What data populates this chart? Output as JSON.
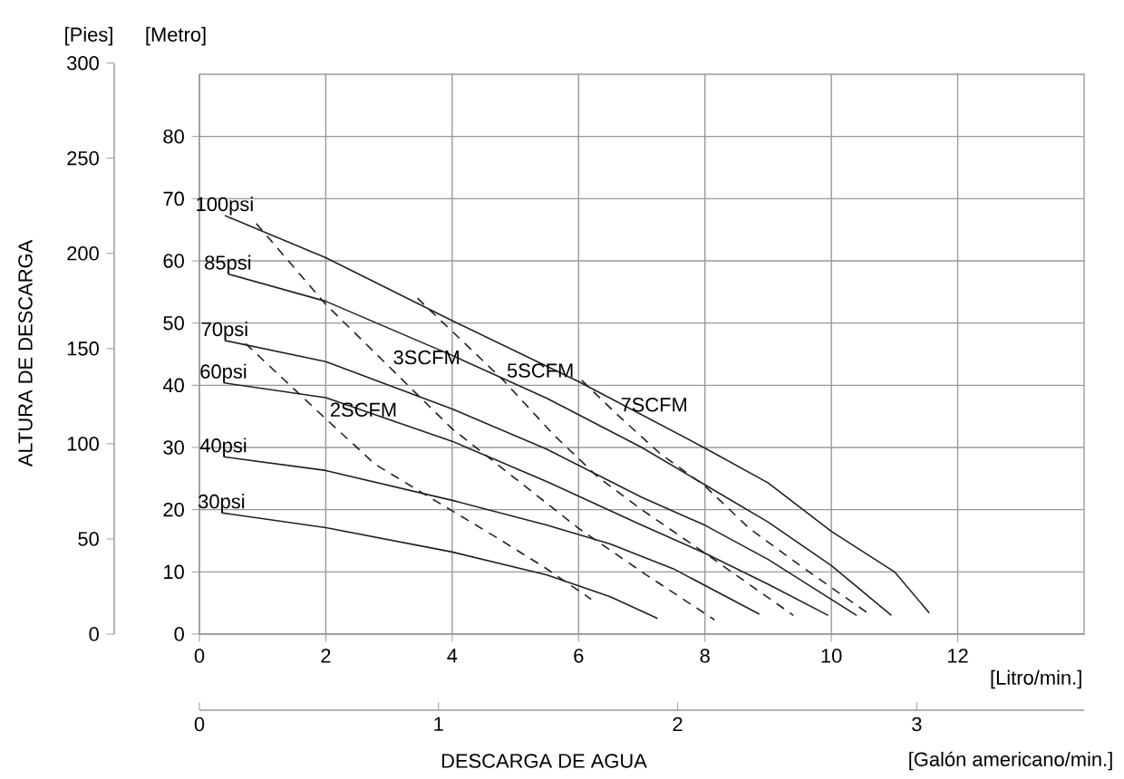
{
  "chart_data": {
    "type": "line",
    "xlabel": "[Litro/min.]",
    "x2label": "[Galón americano/min.]",
    "ylabel": "[Metro]",
    "y2label": "[Pies]",
    "annotations": [
      "DESCARGA DE AGUA",
      "ALTURA DE DESCARGA"
    ],
    "xlim": [
      0,
      14
    ],
    "xticks": [
      0,
      2,
      4,
      6,
      8,
      10,
      12
    ],
    "x2lim": [
      0,
      3.7
    ],
    "x2ticks": [
      0,
      1,
      2,
      3
    ],
    "ylim": [
      0,
      90
    ],
    "yticks": [
      0,
      10,
      20,
      30,
      40,
      50,
      60,
      70,
      80
    ],
    "y2lim": [
      0,
      300
    ],
    "y2ticks": [
      0,
      50,
      100,
      150,
      200,
      250,
      300
    ],
    "grid": true,
    "series": [
      {
        "name": "100psi",
        "color": "#231f20",
        "line_style": "solid",
        "x": [
          0.4,
          2,
          4,
          6,
          8,
          9,
          10,
          11,
          11.55
        ],
        "values": [
          67.3,
          60.5,
          50.4,
          40.6,
          29.9,
          24.3,
          16.5,
          10,
          3.4
        ]
      },
      {
        "name": "85psi",
        "color": "#231f20",
        "line_style": "solid",
        "x": [
          0.45,
          2,
          4,
          5.5,
          7,
          8,
          9,
          10,
          10.95
        ],
        "values": [
          57.9,
          53.5,
          44.8,
          37.9,
          30,
          24,
          18,
          11,
          3
        ]
      },
      {
        "name": "70psi",
        "color": "#231f20",
        "line_style": "solid",
        "x": [
          0.4,
          2,
          4,
          5.5,
          7,
          8,
          9,
          10.4
        ],
        "values": [
          47.2,
          43.8,
          36.2,
          29.7,
          22,
          17.5,
          12,
          3
        ]
      },
      {
        "name": "60psi",
        "color": "#231f20",
        "line_style": "solid",
        "x": [
          0.38,
          2,
          4,
          5.5,
          7,
          8,
          9,
          9.95
        ],
        "values": [
          40.4,
          38,
          31,
          24.5,
          17.5,
          13,
          8,
          3
        ]
      },
      {
        "name": "40psi",
        "color": "#231f20",
        "line_style": "solid",
        "x": [
          0.38,
          2,
          4,
          5.5,
          6.5,
          7.5,
          8.86
        ],
        "values": [
          28.5,
          26.3,
          21.5,
          17.5,
          14.5,
          10.5,
          3.2
        ]
      },
      {
        "name": "30psi",
        "color": "#231f20",
        "line_style": "solid",
        "x": [
          0.35,
          2,
          4,
          5.5,
          6.5,
          7.25
        ],
        "values": [
          19.5,
          17.1,
          13.2,
          9.5,
          6,
          2.5
        ]
      },
      {
        "name": "2SCFM",
        "color": "#231f20",
        "line_style": "dashed",
        "x": [
          0.73,
          2,
          2.78,
          3.64,
          4.69,
          5.45,
          6.2
        ],
        "values": [
          46.7,
          34.6,
          27.3,
          22,
          15.6,
          10.8,
          5.6
        ]
      },
      {
        "name": "3SCFM",
        "color": "#231f20",
        "line_style": "dashed",
        "x": [
          0.9,
          2,
          3,
          4,
          5,
          6,
          7,
          8.15
        ],
        "values": [
          66,
          53,
          43,
          33,
          25,
          17,
          10,
          2.3
        ]
      },
      {
        "name": "5SCFM",
        "color": "#231f20",
        "line_style": "dashed",
        "x": [
          3.45,
          4.1,
          4.8,
          5.6,
          6.3,
          7,
          8,
          9.4
        ],
        "values": [
          54,
          47.7,
          40.9,
          32.1,
          25.3,
          20,
          13,
          3
        ]
      },
      {
        "name": "7SCFM",
        "color": "#231f20",
        "line_style": "dashed",
        "x": [
          6.05,
          6.6,
          7.28,
          8,
          8.7,
          9.55,
          10.6
        ],
        "values": [
          40.8,
          35.4,
          29.1,
          23.8,
          17,
          10.7,
          3.2
        ]
      }
    ]
  }
}
